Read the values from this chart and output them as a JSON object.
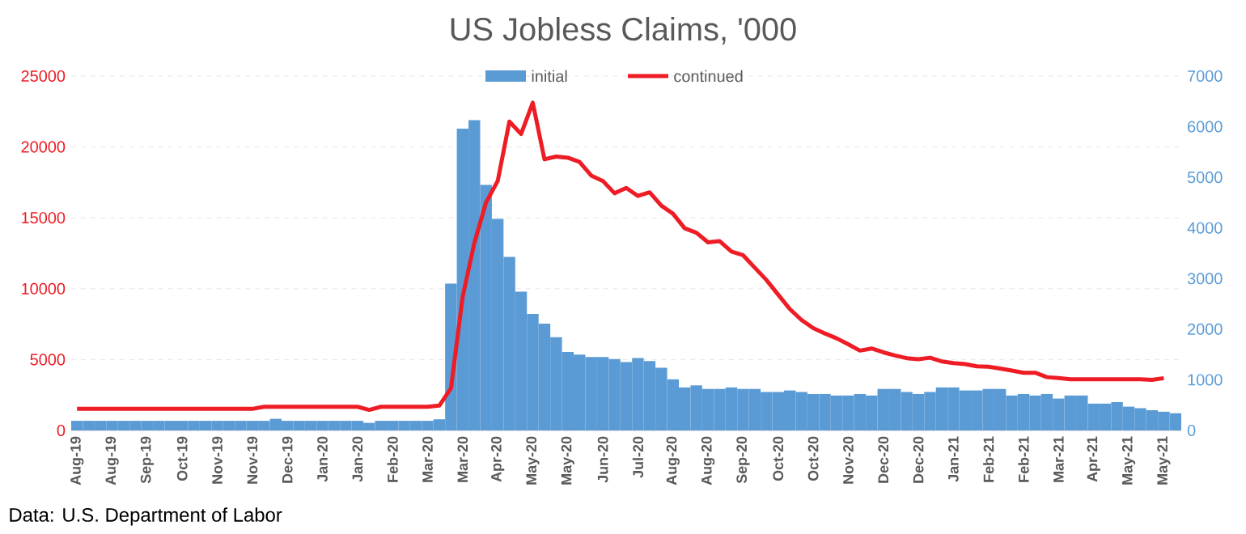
{
  "chart_data": {
    "type": "bar",
    "title": "US Jobless Claims, '000",
    "categories": [
      "Aug-19",
      null,
      null,
      "Aug-19",
      null,
      null,
      "Sep-19",
      null,
      null,
      "Oct-19",
      null,
      null,
      "Nov-19",
      null,
      null,
      "Nov-19",
      null,
      null,
      "Dec-19",
      null,
      null,
      "Jan-20",
      null,
      null,
      "Jan-20",
      null,
      null,
      "Feb-20",
      null,
      null,
      "Mar-20",
      null,
      null,
      "Mar-20",
      null,
      null,
      "Apr-20",
      null,
      null,
      "May-20",
      null,
      null,
      "May-20",
      null,
      null,
      "Jun-20",
      null,
      null,
      "Jul-20",
      null,
      null,
      "Aug-20",
      null,
      null,
      "Aug-20",
      null,
      null,
      "Sep-20",
      null,
      null,
      "Oct-20",
      null,
      null,
      "Oct-20",
      null,
      null,
      "Nov-20",
      null,
      null,
      "Dec-20",
      null,
      null,
      "Dec-20",
      null,
      null,
      "Jan-21",
      null,
      null,
      "Feb-21",
      null,
      null,
      "Feb-21",
      null,
      null,
      "Mar-21",
      null,
      null,
      "Apr-21",
      null,
      null,
      "May-21",
      null,
      null,
      "May-21",
      null
    ],
    "series": [
      {
        "name": "initial",
        "axis": "y2",
        "color": "#5b9bd5",
        "values": [
          190,
          190,
          190,
          190,
          190,
          190,
          190,
          190,
          190,
          190,
          190,
          190,
          190,
          190,
          190,
          190,
          190,
          230,
          190,
          190,
          190,
          190,
          190,
          190,
          190,
          150,
          190,
          190,
          190,
          190,
          190,
          220,
          2900,
          5960,
          6130,
          4850,
          4180,
          3430,
          2740,
          2300,
          2110,
          1840,
          1550,
          1500,
          1450,
          1450,
          1410,
          1350,
          1430,
          1370,
          1240,
          1010,
          850,
          890,
          820,
          820,
          850,
          820,
          820,
          760,
          760,
          790,
          760,
          720,
          720,
          690,
          690,
          720,
          690,
          820,
          820,
          760,
          720,
          760,
          850,
          850,
          790,
          790,
          820,
          820,
          690,
          720,
          690,
          720,
          630,
          690,
          690,
          530,
          530,
          560,
          470,
          440,
          400,
          370,
          340
        ]
      },
      {
        "name": "continued",
        "type": "line",
        "axis": "y",
        "color": "#ee1c25",
        "values": [
          1520,
          1520,
          1520,
          1520,
          1520,
          1520,
          1520,
          1520,
          1520,
          1520,
          1520,
          1520,
          1520,
          1520,
          1520,
          1520,
          1670,
          1670,
          1670,
          1670,
          1670,
          1670,
          1670,
          1670,
          1670,
          1450,
          1670,
          1670,
          1670,
          1670,
          1670,
          1750,
          2970,
          9430,
          13230,
          16080,
          17600,
          21790,
          20910,
          23120,
          19130,
          19320,
          19240,
          18940,
          17980,
          17600,
          16730,
          17110,
          16540,
          16800,
          15860,
          15290,
          14260,
          13950,
          13270,
          13350,
          12620,
          12360,
          11480,
          10610,
          9580,
          8560,
          7790,
          7220,
          6840,
          6500,
          6080,
          5630,
          5780,
          5510,
          5290,
          5100,
          5020,
          5130,
          4870,
          4750,
          4680,
          4520,
          4490,
          4370,
          4220,
          4070,
          4070,
          3760,
          3690,
          3610,
          3610,
          3610,
          3610,
          3610,
          3610,
          3610,
          3570,
          3690,
          null
        ]
      }
    ],
    "ylim": [
      0,
      25000
    ],
    "yticks": [
      0,
      5000,
      10000,
      15000,
      20000,
      25000
    ],
    "y2lim": [
      0,
      7000
    ],
    "y2ticks": [
      0,
      1000,
      2000,
      3000,
      4000,
      5000,
      6000,
      7000
    ],
    "grid": "y",
    "legend": "top",
    "annotations": [
      "Data: U.S. Department of Labor"
    ]
  }
}
